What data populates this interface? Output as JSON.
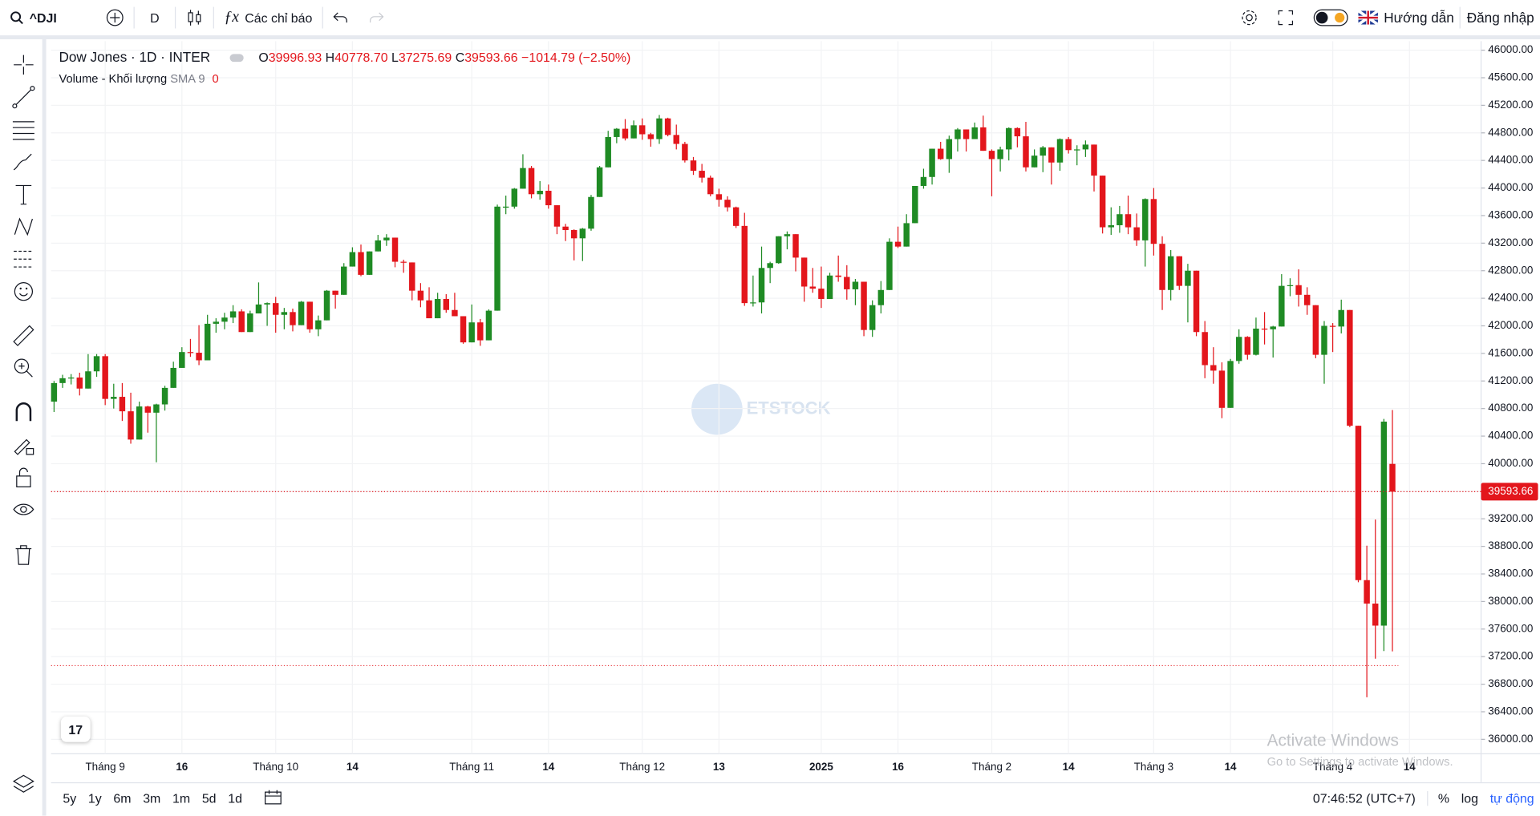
{
  "toolbar": {
    "symbol": "^DJI",
    "interval": "D",
    "indicators": "Các chỉ báo",
    "guide": "Hướng dẫn",
    "login": "Đăng nhập"
  },
  "legend": {
    "title": "Dow Jones · 1D · INTER",
    "o": "O",
    "o_value": "39996.93",
    "h": "H",
    "h_value": "40778.70",
    "l": "L",
    "l_value": "37275.69",
    "c": "C",
    "c_value": "39593.66",
    "change": "−1014.79 (−2.50%)",
    "volume": "Volume - Khối lượng",
    "sma": "SMA 9",
    "sma_value": "0"
  },
  "bottom_bar": {
    "ranges": [
      "5y",
      "1y",
      "6m",
      "3m",
      "1m",
      "5d",
      "1d"
    ],
    "clock": "07:46:52 (UTC+7)",
    "percent": "%",
    "log": "log",
    "auto": "tự động"
  },
  "overlay": {
    "title": "Activate Windows",
    "subtitle": "Go to Settings to activate Windows."
  },
  "chart_data": {
    "type": "candlestick",
    "up_color": "#1f8b24",
    "down_color": "#e3161c",
    "grid": true,
    "xlim": [
      -0.35,
      167.4
    ],
    "xticks": [
      {
        "value": 6,
        "label": "Tháng 9"
      },
      {
        "value": 15,
        "label": "16"
      },
      {
        "value": 26,
        "label": "Tháng 10"
      },
      {
        "value": 35,
        "label": "14"
      },
      {
        "value": 49,
        "label": "Tháng 11"
      },
      {
        "value": 58,
        "label": "14"
      },
      {
        "value": 69,
        "label": "Tháng 12"
      },
      {
        "value": 78,
        "label": "13"
      },
      {
        "value": 90,
        "label": "2025"
      },
      {
        "value": 99,
        "label": "16"
      },
      {
        "value": 110,
        "label": "Tháng 2"
      },
      {
        "value": 119,
        "label": "14"
      },
      {
        "value": 129,
        "label": "Tháng 3"
      },
      {
        "value": 138,
        "label": "14"
      },
      {
        "value": 150,
        "label": "Tháng 4"
      },
      {
        "value": 159,
        "label": "14"
      }
    ],
    "ylim": [
      35790,
      46130
    ],
    "yticks": [
      {
        "value": 36000,
        "label": "36000.00"
      },
      {
        "value": 36400,
        "label": "36400.00"
      },
      {
        "value": 36800,
        "label": "36800.00"
      },
      {
        "value": 37200,
        "label": "37200.00"
      },
      {
        "value": 37600,
        "label": "37600.00"
      },
      {
        "value": 38000,
        "label": "38000.00"
      },
      {
        "value": 38400,
        "label": "38400.00"
      },
      {
        "value": 38800,
        "label": "38800.00"
      },
      {
        "value": 39200,
        "label": "39200.00"
      },
      {
        "value": 39600,
        "label": "39600.00"
      },
      {
        "value": 40000,
        "label": "40000.00"
      },
      {
        "value": 40400,
        "label": "40400.00"
      },
      {
        "value": 40800,
        "label": "40800.00"
      },
      {
        "value": 41200,
        "label": "41200.00"
      },
      {
        "value": 41600,
        "label": "41600.00"
      },
      {
        "value": 42000,
        "label": "42000.00"
      },
      {
        "value": 42400,
        "label": "42400.00"
      },
      {
        "value": 42800,
        "label": "42800.00"
      },
      {
        "value": 43200,
        "label": "43200.00"
      },
      {
        "value": 43600,
        "label": "43600.00"
      },
      {
        "value": 44000,
        "label": "44000.00"
      },
      {
        "value": 44400,
        "label": "44400.00"
      },
      {
        "value": 44800,
        "label": "44800.00"
      },
      {
        "value": 45200,
        "label": "45200.00"
      },
      {
        "value": 45600,
        "label": "45600.00"
      },
      {
        "value": 46000,
        "label": "46000.00"
      }
    ],
    "price_line": {
      "value": 39593.66,
      "label": "39593.66",
      "color": "#e3161c"
    },
    "level_line": 37070,
    "ohlc": [
      [
        40900,
        41200,
        40750,
        41170
      ],
      [
        41170,
        41290,
        41100,
        41240
      ],
      [
        41240,
        41300,
        41150,
        41250
      ],
      [
        41250,
        41320,
        40990,
        41090
      ],
      [
        41090,
        41590,
        41090,
        41340
      ],
      [
        41340,
        41590,
        41260,
        41560
      ],
      [
        41560,
        41590,
        40850,
        40940
      ],
      [
        40940,
        41160,
        40800,
        40970
      ],
      [
        40970,
        41170,
        40620,
        40760
      ],
      [
        40760,
        41030,
        40290,
        40350
      ],
      [
        40350,
        40900,
        40350,
        40830
      ],
      [
        40830,
        40840,
        40450,
        40740
      ],
      [
        40740,
        40870,
        40020,
        40860
      ],
      [
        40860,
        41130,
        40770,
        41100
      ],
      [
        41100,
        41480,
        41100,
        41390
      ],
      [
        41390,
        41690,
        41390,
        41620
      ],
      [
        41620,
        41810,
        41550,
        41610
      ],
      [
        41610,
        42010,
        41430,
        41500
      ],
      [
        41500,
        42160,
        41500,
        42030
      ],
      [
        42030,
        42110,
        41900,
        42060
      ],
      [
        42060,
        42190,
        41950,
        42120
      ],
      [
        42120,
        42300,
        42040,
        42210
      ],
      [
        42210,
        42240,
        41910,
        41910
      ],
      [
        41910,
        42220,
        41910,
        42180
      ],
      [
        42180,
        42630,
        42180,
        42310
      ],
      [
        42310,
        42340,
        42000,
        42330
      ],
      [
        42330,
        42420,
        41900,
        42160
      ],
      [
        42160,
        42260,
        41950,
        42200
      ],
      [
        42200,
        42250,
        41920,
        42010
      ],
      [
        42010,
        42360,
        42010,
        42350
      ],
      [
        42350,
        42350,
        41900,
        41950
      ],
      [
        41950,
        42150,
        41850,
        42080
      ],
      [
        42080,
        42520,
        42080,
        42510
      ],
      [
        42510,
        42510,
        42250,
        42450
      ],
      [
        42450,
        42910,
        42450,
        42860
      ],
      [
        42860,
        43140,
        42860,
        43070
      ],
      [
        43070,
        43180,
        42720,
        42740
      ],
      [
        42740,
        43080,
        42740,
        43080
      ],
      [
        43080,
        43320,
        43080,
        43240
      ],
      [
        43240,
        43330,
        43160,
        43280
      ],
      [
        43280,
        43280,
        42850,
        42930
      ],
      [
        42930,
        42960,
        42770,
        42920
      ],
      [
        42920,
        42920,
        42370,
        42510
      ],
      [
        42510,
        42620,
        42270,
        42370
      ],
      [
        42370,
        42560,
        42110,
        42110
      ],
      [
        42110,
        42480,
        42110,
        42390
      ],
      [
        42390,
        42460,
        42190,
        42230
      ],
      [
        42230,
        42480,
        42140,
        42140
      ],
      [
        42140,
        42140,
        41740,
        41760
      ],
      [
        41760,
        42310,
        41760,
        42050
      ],
      [
        42050,
        42100,
        41710,
        41790
      ],
      [
        41790,
        42240,
        41790,
        42220
      ],
      [
        42220,
        43760,
        42220,
        43730
      ],
      [
        43730,
        43890,
        43620,
        43730
      ],
      [
        43730,
        44000,
        43700,
        43990
      ],
      [
        43990,
        44490,
        43990,
        44290
      ],
      [
        44290,
        44320,
        43850,
        43910
      ],
      [
        43910,
        44100,
        43830,
        43960
      ],
      [
        43960,
        44050,
        43700,
        43750
      ],
      [
        43750,
        43750,
        43330,
        43440
      ],
      [
        43440,
        43480,
        43230,
        43390
      ],
      [
        43390,
        43400,
        42950,
        43270
      ],
      [
        43270,
        43420,
        42940,
        43410
      ],
      [
        43410,
        43900,
        43380,
        43870
      ],
      [
        43870,
        44320,
        43870,
        44300
      ],
      [
        44300,
        44830,
        44300,
        44740
      ],
      [
        44740,
        44870,
        44650,
        44860
      ],
      [
        44860,
        45000,
        44690,
        44720
      ],
      [
        44720,
        44980,
        44720,
        44910
      ],
      [
        44910,
        45010,
        44700,
        44780
      ],
      [
        44780,
        44800,
        44600,
        44710
      ],
      [
        44710,
        45060,
        44640,
        45010
      ],
      [
        45010,
        45020,
        44750,
        44770
      ],
      [
        44770,
        44920,
        44560,
        44640
      ],
      [
        44640,
        44670,
        44370,
        44400
      ],
      [
        44400,
        44450,
        44190,
        44250
      ],
      [
        44250,
        44350,
        44080,
        44150
      ],
      [
        44150,
        44180,
        43880,
        43910
      ],
      [
        43910,
        43990,
        43730,
        43830
      ],
      [
        43830,
        43880,
        43660,
        43720
      ],
      [
        43720,
        43730,
        43420,
        43450
      ],
      [
        43450,
        43640,
        42290,
        42330
      ],
      [
        42330,
        42730,
        42280,
        42340
      ],
      [
        42340,
        43150,
        42180,
        42840
      ],
      [
        42840,
        42930,
        42620,
        42910
      ],
      [
        42910,
        43300,
        42900,
        43300
      ],
      [
        43300,
        43370,
        43110,
        43330
      ],
      [
        43330,
        43330,
        42790,
        42990
      ],
      [
        42990,
        42990,
        42350,
        42570
      ],
      [
        42570,
        42840,
        42480,
        42540
      ],
      [
        42540,
        42860,
        42260,
        42390
      ],
      [
        42390,
        42770,
        42390,
        42730
      ],
      [
        42730,
        43020,
        42640,
        42710
      ],
      [
        42710,
        42880,
        42380,
        42530
      ],
      [
        42530,
        42680,
        42300,
        42640
      ],
      [
        42640,
        42640,
        41850,
        41940
      ],
      [
        41940,
        42370,
        41840,
        42300
      ],
      [
        42300,
        42650,
        42180,
        42520
      ],
      [
        42520,
        43270,
        42520,
        43220
      ],
      [
        43220,
        43440,
        43130,
        43150
      ],
      [
        43150,
        43620,
        43150,
        43490
      ],
      [
        43490,
        44030,
        43490,
        44030
      ],
      [
        44030,
        44280,
        43990,
        44160
      ],
      [
        44160,
        44570,
        44050,
        44570
      ],
      [
        44570,
        44670,
        44410,
        44420
      ],
      [
        44420,
        44760,
        44220,
        44710
      ],
      [
        44710,
        44870,
        44530,
        44850
      ],
      [
        44850,
        44850,
        44530,
        44710
      ],
      [
        44710,
        44950,
        44710,
        44880
      ],
      [
        44880,
        45050,
        44540,
        44540
      ],
      [
        44540,
        44560,
        43880,
        44420
      ],
      [
        44420,
        44600,
        44240,
        44560
      ],
      [
        44560,
        44880,
        44400,
        44870
      ],
      [
        44870,
        44880,
        44590,
        44750
      ],
      [
        44750,
        44960,
        44240,
        44300
      ],
      [
        44300,
        44560,
        44300,
        44470
      ],
      [
        44470,
        44610,
        44230,
        44590
      ],
      [
        44590,
        44590,
        44050,
        44370
      ],
      [
        44370,
        44720,
        44250,
        44710
      ],
      [
        44710,
        44740,
        44500,
        44550
      ],
      [
        44550,
        44620,
        44330,
        44560
      ],
      [
        44560,
        44690,
        44450,
        44630
      ],
      [
        44630,
        44630,
        43950,
        44180
      ],
      [
        44180,
        44180,
        43340,
        43430
      ],
      [
        43430,
        43720,
        43320,
        43460
      ],
      [
        43460,
        43740,
        43350,
        43620
      ],
      [
        43620,
        43890,
        43330,
        43430
      ],
      [
        43430,
        43630,
        43160,
        43240
      ],
      [
        43240,
        43850,
        42860,
        43840
      ],
      [
        43840,
        44000,
        43020,
        43190
      ],
      [
        43190,
        43300,
        42230,
        42520
      ],
      [
        42520,
        43100,
        42370,
        43010
      ],
      [
        43010,
        43010,
        42520,
        42580
      ],
      [
        42580,
        42900,
        42050,
        42800
      ],
      [
        42800,
        42800,
        41850,
        41910
      ],
      [
        41910,
        42070,
        41240,
        41430
      ],
      [
        41430,
        41690,
        41160,
        41350
      ],
      [
        41350,
        41470,
        40660,
        40810
      ],
      [
        40810,
        41520,
        40810,
        41490
      ],
      [
        41490,
        41950,
        41450,
        41840
      ],
      [
        41840,
        41850,
        41510,
        41580
      ],
      [
        41580,
        42120,
        41570,
        41960
      ],
      [
        41960,
        42200,
        41730,
        41950
      ],
      [
        41950,
        42000,
        41540,
        41990
      ],
      [
        41990,
        42750,
        41990,
        42580
      ],
      [
        42580,
        42690,
        42430,
        42590
      ],
      [
        42590,
        42820,
        42280,
        42450
      ],
      [
        42450,
        42560,
        42160,
        42300
      ],
      [
        42300,
        42300,
        41530,
        41580
      ],
      [
        41580,
        42070,
        41160,
        42000
      ],
      [
        42000,
        42040,
        41620,
        41990
      ],
      [
        41990,
        42380,
        41890,
        42230
      ],
      [
        42230,
        42230,
        40530,
        40550
      ],
      [
        40550,
        40550,
        38280,
        38310
      ],
      [
        38310,
        38810,
        36610,
        37970
      ],
      [
        37970,
        39190,
        37170,
        37650
      ],
      [
        37650,
        40650,
        37280,
        40610
      ],
      [
        39996.93,
        40778.7,
        37275.69,
        39593.66
      ]
    ]
  }
}
